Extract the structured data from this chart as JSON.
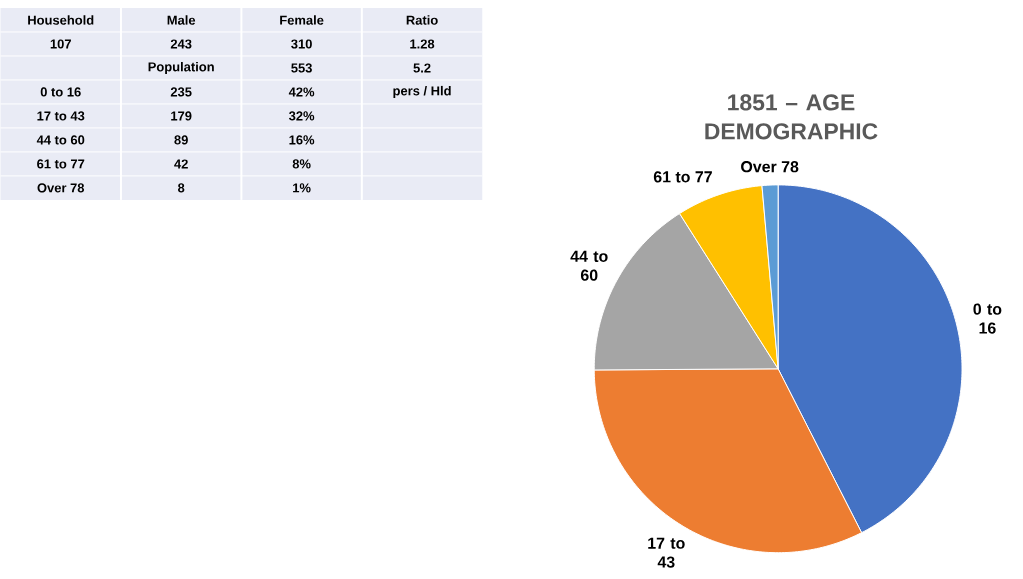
{
  "chart_data": [
    {
      "type": "other",
      "annotations": [
        "Household",
        "Male",
        "Female",
        "Ratio",
        "107",
        "243",
        "310",
        "1.28",
        null,
        "Population",
        "553",
        "5.2",
        "0 to 16",
        "235",
        "42%",
        "pers / Hld",
        "17 to 43",
        "179",
        "32%",
        null,
        "44 to 60",
        "89",
        "16%",
        null,
        "61 to 77",
        "42",
        "8%",
        null,
        "Over 78",
        "8",
        "1%",
        null
      ]
    },
    {
      "type": "pie",
      "title": "1851 – AGE DEMOGRAPHIC",
      "categories": [
        "0 to 16",
        "17 to 43",
        "44 to 60",
        "61 to 77",
        "Over 78"
      ],
      "values": [
        42.5,
        32.4,
        16.1,
        7.6,
        1.4
      ],
      "colors": [
        "#4472c4",
        "#ed7d31",
        "#a5a5a5",
        "#ffc000",
        "#5b9bd5"
      ]
    }
  ]
}
